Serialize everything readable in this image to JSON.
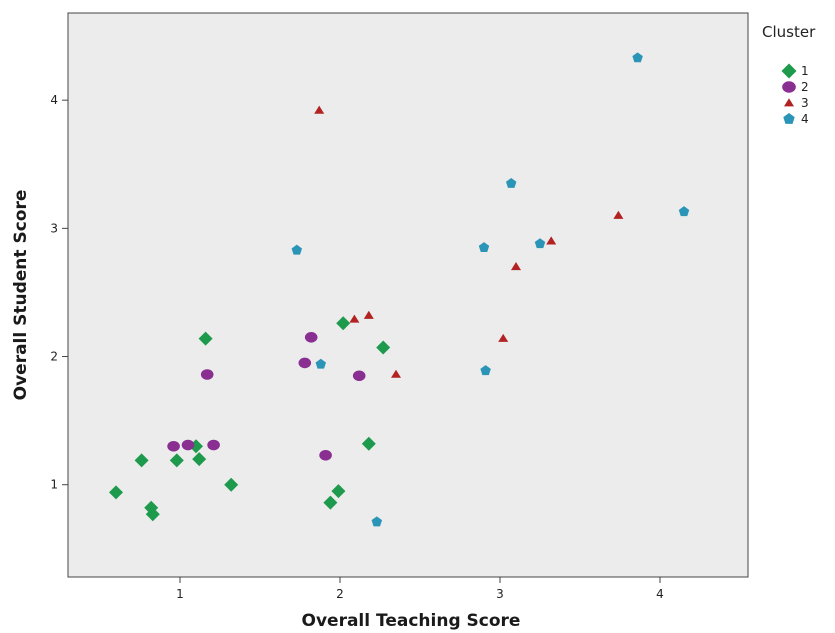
{
  "chart_data": {
    "type": "scatter",
    "xlabel": "Overall Teaching Score",
    "ylabel": "Overall Student Score",
    "xlim": [
      0.3,
      4.55
    ],
    "ylim": [
      0.28,
      4.68
    ],
    "x_ticks": [
      "1",
      "2",
      "3",
      "4"
    ],
    "y_ticks": [
      "1",
      "2",
      "3",
      "4"
    ],
    "grid": false,
    "plot_background": "#ececec",
    "legend": {
      "title": "Cluster",
      "position": "right"
    },
    "series": [
      {
        "name": "1",
        "marker": "diamond",
        "color": "#1e9a4c",
        "points": [
          [
            0.6,
            0.94
          ],
          [
            0.76,
            1.19
          ],
          [
            0.82,
            0.82
          ],
          [
            0.83,
            0.77
          ],
          [
            0.98,
            1.19
          ],
          [
            1.1,
            1.3
          ],
          [
            1.12,
            1.2
          ],
          [
            1.16,
            2.14
          ],
          [
            1.32,
            1.0
          ],
          [
            1.94,
            0.86
          ],
          [
            1.99,
            0.95
          ],
          [
            2.02,
            2.26
          ],
          [
            2.18,
            1.32
          ],
          [
            2.27,
            2.07
          ]
        ]
      },
      {
        "name": "2",
        "marker": "circle",
        "color": "#8a2f92",
        "points": [
          [
            0.96,
            1.3
          ],
          [
            1.05,
            1.31
          ],
          [
            1.21,
            1.31
          ],
          [
            1.17,
            1.86
          ],
          [
            1.78,
            1.95
          ],
          [
            1.82,
            2.15
          ],
          [
            1.91,
            1.23
          ],
          [
            2.12,
            1.85
          ]
        ]
      },
      {
        "name": "3",
        "marker": "triangle",
        "color": "#b32222",
        "points": [
          [
            1.87,
            3.92
          ],
          [
            2.09,
            2.29
          ],
          [
            2.18,
            2.32
          ],
          [
            2.35,
            1.86
          ],
          [
            3.02,
            2.14
          ],
          [
            3.1,
            2.7
          ],
          [
            3.32,
            2.9
          ],
          [
            3.74,
            3.1
          ]
        ]
      },
      {
        "name": "4",
        "marker": "pentagon",
        "color": "#2b95b8",
        "points": [
          [
            1.73,
            2.83
          ],
          [
            1.88,
            1.94
          ],
          [
            2.23,
            0.71
          ],
          [
            2.9,
            2.85
          ],
          [
            2.91,
            1.89
          ],
          [
            3.07,
            3.35
          ],
          [
            3.25,
            2.88
          ],
          [
            3.86,
            4.33
          ],
          [
            4.15,
            3.13
          ]
        ]
      }
    ]
  }
}
